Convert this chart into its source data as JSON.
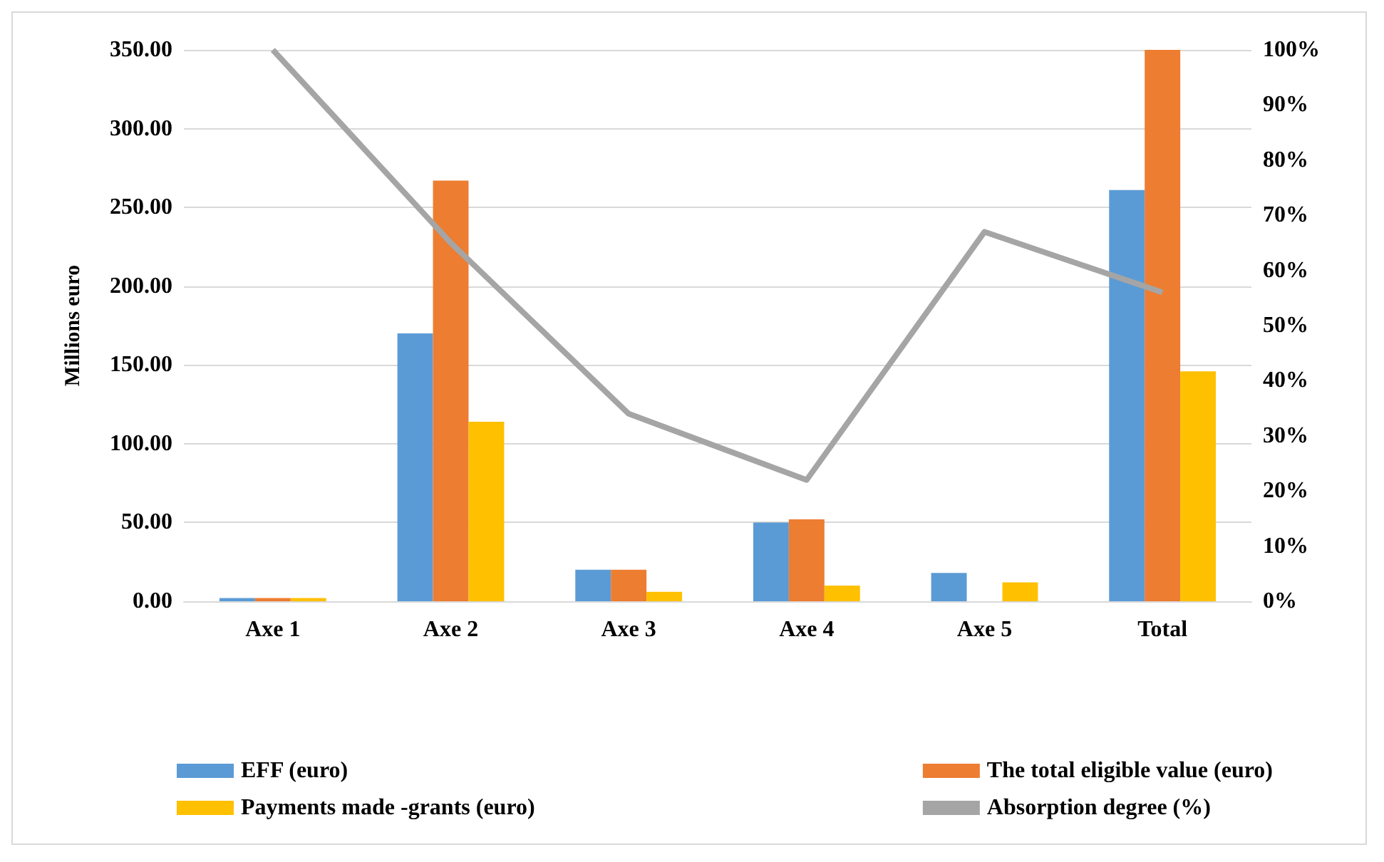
{
  "chart_data": {
    "type": "bar",
    "ylabel": "Millions euro",
    "categories": [
      "Axe 1",
      "Axe 2",
      "Axe 3",
      "Axe 4",
      "Axe 5",
      "Total"
    ],
    "series": [
      {
        "name": "EFF (euro)",
        "color": "#5b9bd5",
        "values": [
          2,
          170,
          20,
          50,
          18,
          261
        ]
      },
      {
        "name": "The total eligible value (euro)",
        "color": "#ed7d31",
        "values": [
          2,
          267,
          20,
          52,
          0,
          350
        ]
      },
      {
        "name": "Payments made -grants (euro)",
        "color": "#ffc000",
        "values": [
          2,
          114,
          6,
          10,
          12,
          146
        ]
      },
      {
        "name": "Absorption degree (%)",
        "type": "line",
        "axis": "y2",
        "color": "#a5a5a5",
        "values": [
          100,
          65,
          34,
          22,
          67,
          56
        ]
      }
    ],
    "ylim": [
      0,
      350
    ],
    "yticks": [
      {
        "value": 0,
        "label": "0.00"
      },
      {
        "value": 50,
        "label": "50.00"
      },
      {
        "value": 100,
        "label": "100.00"
      },
      {
        "value": 150,
        "label": "150.00"
      },
      {
        "value": 200,
        "label": "200.00"
      },
      {
        "value": 250,
        "label": "250.00"
      },
      {
        "value": 300,
        "label": "300.00"
      },
      {
        "value": 350,
        "label": "350.00"
      }
    ],
    "y2lim": [
      0,
      100
    ],
    "y2ticks": [
      {
        "value": 0,
        "label": "0%"
      },
      {
        "value": 10,
        "label": "10%"
      },
      {
        "value": 20,
        "label": "20%"
      },
      {
        "value": 30,
        "label": "30%"
      },
      {
        "value": 40,
        "label": "40%"
      },
      {
        "value": 50,
        "label": "50%"
      },
      {
        "value": 60,
        "label": "60%"
      },
      {
        "value": 70,
        "label": "70%"
      },
      {
        "value": 80,
        "label": "80%"
      },
      {
        "value": 90,
        "label": "90%"
      },
      {
        "value": 100,
        "label": "100%"
      }
    ],
    "grid": "y",
    "legend": "bottom",
    "marker": "none",
    "line_style": "solid"
  }
}
